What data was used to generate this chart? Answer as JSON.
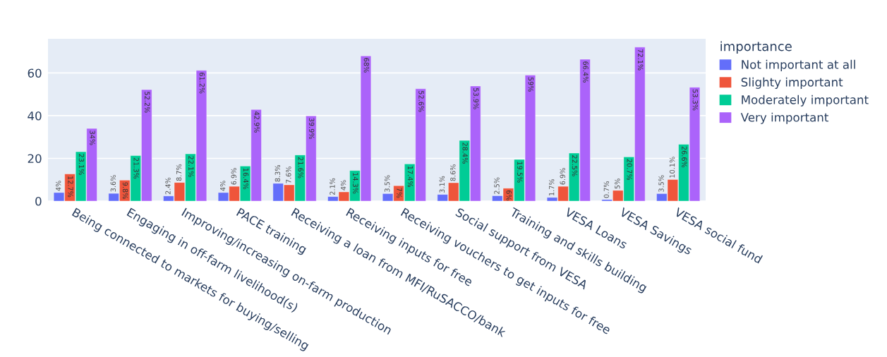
{
  "chart_data": {
    "type": "bar",
    "categories": [
      "Being connected to markets for buying/selling",
      "Engaging in off-farm livelihood(s)",
      "Improving/increasing on-farm production",
      "PACE training",
      "Receiving a loan from MFI/RuSACCO/bank",
      "Receiving inputs for free",
      "Receiving vouchers to get inputs for free",
      "Social support from VESA",
      "Training and skills building",
      "VESA Loans",
      "VESA Savings",
      "VESA social fund"
    ],
    "legend_title": "importance",
    "series": [
      {
        "name": "Not important at all",
        "color": "#636efa",
        "values": [
          4,
          3.6,
          2.4,
          4,
          8.3,
          2.1,
          3.5,
          3.1,
          2.5,
          1.7,
          0.7,
          3.5
        ],
        "value_labels": [
          "4%",
          "3.6%",
          "2.4%",
          "4%",
          "8.3%",
          "2.1%",
          "3.5%",
          "3.1%",
          "2.5%",
          "1.7%",
          "0.7%",
          "3.5%"
        ]
      },
      {
        "name": "Slighty important",
        "color": "#ef553b",
        "values": [
          12.7,
          9.8,
          8.7,
          6.9,
          7.6,
          4.3,
          7.2,
          8.6,
          6,
          6.9,
          5,
          10.1
        ],
        "value_labels": [
          "12.7%",
          "9.8%",
          "8.7%",
          "6.9%",
          "7.6%",
          "4%",
          "7%",
          "8.6%",
          "6%",
          "6.9%",
          "5%",
          "10.1%"
        ]
      },
      {
        "name": "Moderately important",
        "color": "#00cc96",
        "values": [
          23.1,
          21.3,
          22.1,
          16.4,
          21.6,
          14.3,
          17.4,
          28.4,
          19.5,
          22.5,
          20.7,
          26.6
        ],
        "value_labels": [
          "23.1%",
          "21.3%",
          "22.1%",
          "16.4%",
          "21.6%",
          "14.3%",
          "17.4%",
          "28.4%",
          "19.5%",
          "22.5%",
          "20.7%",
          "26.6%"
        ]
      },
      {
        "name": "Very important",
        "color": "#ab63fa",
        "values": [
          34,
          52.2,
          61.2,
          42.9,
          39.9,
          68,
          52.6,
          53.9,
          59,
          66.4,
          72.1,
          53.3
        ],
        "value_labels": [
          "34%",
          "52.2%",
          "61.2%",
          "42.9%",
          "39.9%",
          "68%",
          "52.6%",
          "53.9%",
          "59%",
          "66.4%",
          "72.1%",
          "53.3%"
        ]
      }
    ],
    "ylim": [
      0,
      76
    ],
    "yticks": [
      0,
      20,
      40,
      60
    ],
    "grid": "y",
    "legend": "right"
  }
}
